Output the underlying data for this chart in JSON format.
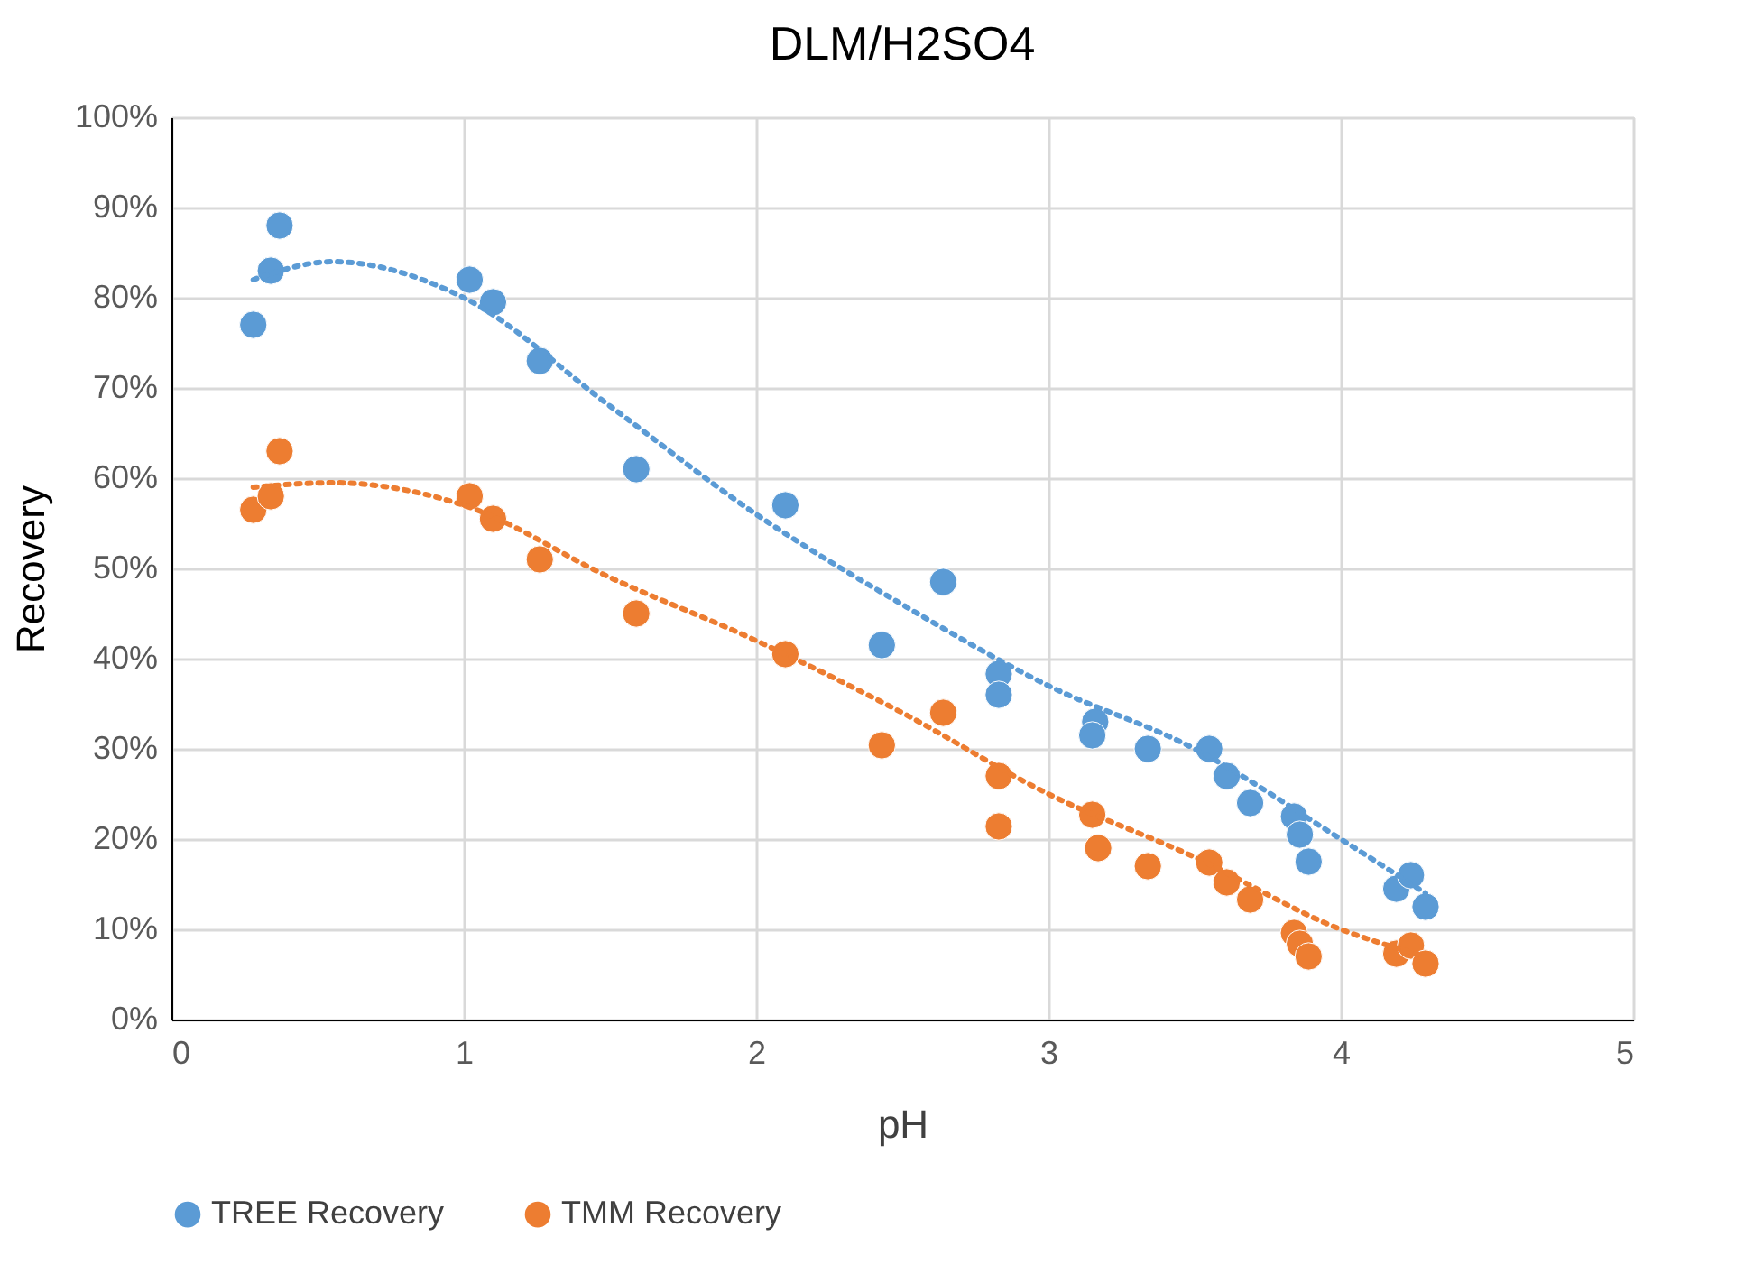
{
  "chart_data": {
    "type": "scatter",
    "title": "DLM/H2SO4",
    "xlabel": "pH",
    "ylabel": "Recovery",
    "xlim": [
      0,
      5
    ],
    "xticks": [
      0,
      1,
      2,
      3,
      4,
      5
    ],
    "ylim": [
      0,
      100
    ],
    "yticks": [
      {
        "value": 0,
        "label": "0%"
      },
      {
        "value": 10,
        "label": "10%"
      },
      {
        "value": 20,
        "label": "20%"
      },
      {
        "value": 30,
        "label": "30%"
      },
      {
        "value": 40,
        "label": "40%"
      },
      {
        "value": 50,
        "label": "50%"
      },
      {
        "value": 60,
        "label": "60%"
      },
      {
        "value": 70,
        "label": "70%"
      },
      {
        "value": 80,
        "label": "80%"
      },
      {
        "value": 90,
        "label": "90%"
      },
      {
        "value": 100,
        "label": "100%"
      }
    ],
    "grid": true,
    "legend": "bottom",
    "marker": "circle",
    "series": [
      {
        "name": "TREE Recovery",
        "color": "#5b9bd5",
        "x": [
          0.28,
          0.34,
          0.37,
          1.02,
          1.1,
          1.26,
          1.59,
          2.1,
          2.43,
          2.64,
          2.83,
          2.83,
          3.16,
          3.15,
          3.34,
          3.55,
          3.61,
          3.69,
          3.84,
          3.86,
          3.89,
          4.19,
          4.24,
          4.29
        ],
        "values": [
          77,
          83,
          88,
          82,
          79.5,
          73,
          61,
          57,
          41.5,
          48.5,
          38.3,
          36,
          33,
          31.5,
          30,
          30,
          27,
          24,
          22.5,
          20.5,
          17.5,
          14.5,
          16,
          12.5
        ]
      },
      {
        "name": "TMM Recovery",
        "color": "#ed7d31",
        "x": [
          0.28,
          0.34,
          0.37,
          1.02,
          1.1,
          1.26,
          1.59,
          2.1,
          2.43,
          2.64,
          2.83,
          2.83,
          3.15,
          3.17,
          3.34,
          3.55,
          3.61,
          3.69,
          3.84,
          3.86,
          3.89,
          4.19,
          4.24,
          4.29
        ],
        "values": [
          56.5,
          58,
          63,
          58,
          55.5,
          51,
          45,
          40.5,
          30.4,
          34,
          27,
          21.4,
          22.7,
          19,
          17,
          17.4,
          15.2,
          13.3,
          9.6,
          8.4,
          7,
          7.3,
          8.2,
          6.2
        ]
      },
      {
        "type": "line",
        "line_style": "dotted",
        "marker": "none",
        "color": "#5b9bd5",
        "x": [
          0.28,
          0.55,
          1.0,
          1.5,
          2.0,
          2.5,
          3.0,
          3.5,
          4.0,
          4.29
        ],
        "values": [
          82,
          84,
          80,
          68,
          56,
          46,
          37,
          30,
          20,
          14
        ]
      },
      {
        "type": "line",
        "line_style": "dotted",
        "marker": "none",
        "color": "#ed7d31",
        "x": [
          0.28,
          0.55,
          1.0,
          1.5,
          2.0,
          2.5,
          3.0,
          3.5,
          4.0,
          4.29
        ],
        "values": [
          59,
          59.5,
          57,
          49,
          42,
          34,
          25,
          18,
          10,
          7
        ]
      }
    ]
  }
}
